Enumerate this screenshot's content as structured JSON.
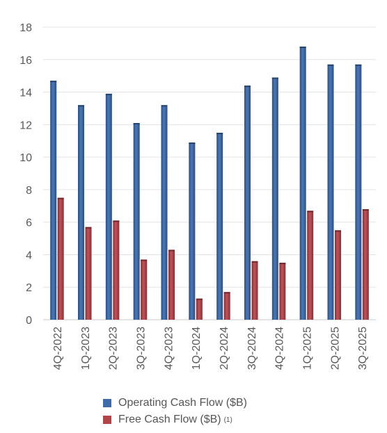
{
  "chart_data": {
    "type": "bar",
    "title": "",
    "xlabel": "",
    "ylabel": "",
    "ylim": [
      0,
      18
    ],
    "yticks": [
      0,
      2,
      4,
      6,
      8,
      10,
      12,
      14,
      16,
      18
    ],
    "grid": true,
    "legend_position": "bottom",
    "categories": [
      "4Q-2022",
      "1Q-2023",
      "2Q-2023",
      "3Q-2023",
      "4Q-2023",
      "1Q-2024",
      "2Q-2024",
      "3Q-2024",
      "4Q-2024",
      "1Q-2025",
      "2Q-2025",
      "3Q-2025"
    ],
    "series": [
      {
        "name": "Operating Cash Flow ($B)",
        "color": "#3f6aa8",
        "values": [
          14.7,
          13.2,
          13.9,
          12.1,
          13.2,
          10.9,
          11.5,
          14.4,
          14.9,
          16.8,
          15.7,
          15.7
        ]
      },
      {
        "name": "Free Cash Flow ($B)",
        "footnote": "(1)",
        "color": "#b04448",
        "values": [
          7.5,
          5.7,
          6.1,
          3.7,
          4.3,
          1.3,
          1.7,
          3.6,
          3.5,
          6.7,
          5.5,
          6.8
        ]
      }
    ]
  }
}
